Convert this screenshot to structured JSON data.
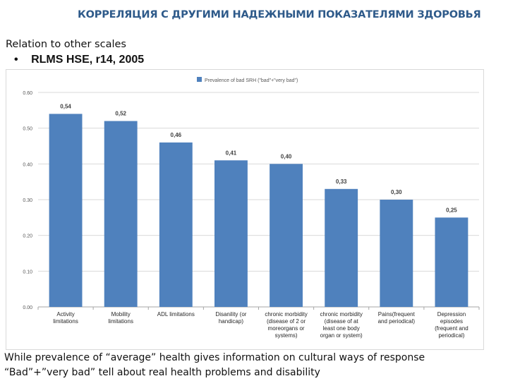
{
  "header": {
    "title": "КОРРЕЛЯЦИЯ С ДРУГИМИ НАДЕЖНЫМИ ПОКАЗАТЕЛЯМИ ЗДОРОВЬЯ",
    "subtitle": "Relation to other scales",
    "bullet": "•",
    "bullet_text": "RLMS HSE, r14, 2005"
  },
  "footer": {
    "line1": "While prevalence of “average” health gives information on cultural ways of response",
    "line2": "“Bad”+”very bad” tell about real health problems and disability"
  },
  "chart_data": {
    "type": "bar",
    "title": "",
    "xlabel": "",
    "ylabel": "",
    "ylim": [
      0,
      0.6
    ],
    "yticks": [
      "0.00",
      "0.10",
      "0.20",
      "0.30",
      "0.40",
      "0.50",
      "0.60"
    ],
    "grid": true,
    "legend_position": "top",
    "bar_color": "#4f81bd",
    "categories": [
      [
        "Activity",
        "limitations"
      ],
      [
        "Mobility",
        "limitations"
      ],
      [
        "ADL limitations"
      ],
      [
        "Disanility (or",
        "handicap)"
      ],
      [
        "chronic morbidity",
        "(disease of 2 or",
        "moreorgans or",
        "systems)"
      ],
      [
        "chronic morbidity",
        "(disease of at",
        "least one body",
        "organ or system)"
      ],
      [
        "Pains(frequent",
        "and periodical)"
      ],
      [
        "Depression",
        "episodes",
        "(frequent and",
        "periodical)"
      ]
    ],
    "series": [
      {
        "name": "Prevalence of bad SRH (\"bad\"+\"very bad\")",
        "values": [
          0.54,
          0.52,
          0.46,
          0.41,
          0.4,
          0.33,
          0.3,
          0.25
        ],
        "labels": [
          "0,54",
          "0,52",
          "0,46",
          "0,41",
          "0,40",
          "0,33",
          "0,30",
          "0,25"
        ]
      }
    ]
  }
}
